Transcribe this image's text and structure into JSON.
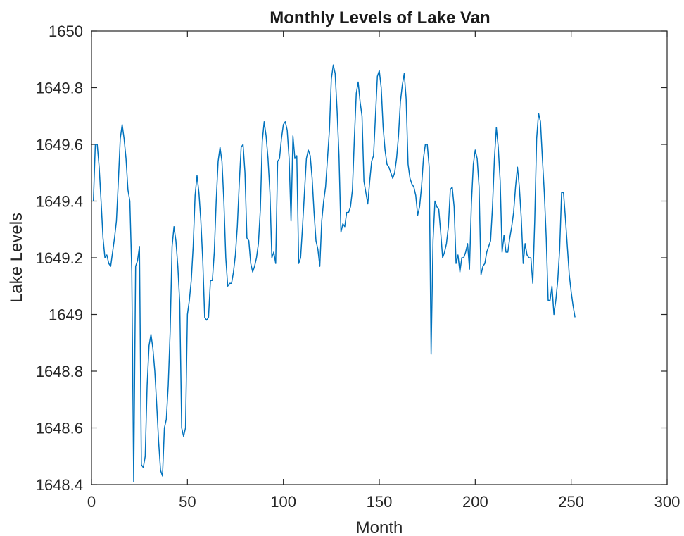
{
  "chart_data": {
    "type": "line",
    "title": "Monthly Levels of Lake Van",
    "xlabel": "Month",
    "ylabel": "Lake Levels",
    "xlim": [
      0,
      300
    ],
    "ylim": [
      1648.4,
      1650
    ],
    "x_ticks": [
      0,
      50,
      100,
      150,
      200,
      250,
      300
    ],
    "x_tick_labels": [
      "0",
      "50",
      "100",
      "150",
      "200",
      "250",
      "300"
    ],
    "y_ticks": [
      1648.4,
      1648.6,
      1648.8,
      1649,
      1649.2,
      1649.4,
      1649.6,
      1649.8,
      1650
    ],
    "y_tick_labels": [
      "1648.4",
      "1648.6",
      "1648.8",
      "1649",
      "1649.2",
      "1649.4",
      "1649.6",
      "1649.8",
      "1650"
    ],
    "grid": false,
    "line_color": "#0072BD",
    "series": [
      {
        "x": [
          1,
          2,
          3,
          4,
          5,
          6,
          7,
          8,
          9,
          10,
          11,
          12,
          13,
          14,
          15,
          16,
          17,
          18,
          19,
          20,
          21,
          22,
          23,
          24,
          25,
          26,
          27,
          28,
          29,
          30,
          31,
          32,
          33,
          34,
          35,
          36,
          37,
          38,
          39,
          40,
          41,
          42,
          43,
          44,
          45,
          46,
          47,
          48,
          49,
          50,
          51,
          52,
          53,
          54,
          55,
          56,
          57,
          58,
          59,
          60,
          61,
          62,
          63,
          64,
          65,
          66,
          67,
          68,
          69,
          70,
          71,
          72,
          73,
          74,
          75,
          76,
          77,
          78,
          79,
          80,
          81,
          82,
          83,
          84,
          85,
          86,
          87,
          88,
          89,
          90,
          91,
          92,
          93,
          94,
          95,
          96,
          97,
          98,
          99,
          100,
          101,
          102,
          103,
          104,
          105,
          106,
          107,
          108,
          109,
          110,
          111,
          112,
          113,
          114,
          115,
          116,
          117,
          118,
          119,
          120,
          121,
          122,
          123,
          124,
          125,
          126,
          127,
          128,
          129,
          130,
          131,
          132,
          133,
          134,
          135,
          136,
          137,
          138,
          139,
          140,
          141,
          142,
          143,
          144,
          145,
          146,
          147,
          148,
          149,
          150,
          151,
          152,
          153,
          154,
          155,
          156,
          157,
          158,
          159,
          160,
          161,
          162,
          163,
          164,
          165,
          166,
          167,
          168,
          169,
          170,
          171,
          172,
          173,
          174,
          175,
          176,
          177,
          178,
          179,
          180,
          181,
          182,
          183,
          184,
          185,
          186,
          187,
          188,
          189,
          190,
          191,
          192,
          193,
          194,
          195,
          196,
          197,
          198,
          199,
          200,
          201,
          202,
          203,
          204,
          205,
          206,
          207,
          208,
          209,
          210,
          211,
          212,
          213,
          214,
          215,
          216,
          217,
          218,
          219,
          220,
          221,
          222,
          223,
          224,
          225,
          226,
          227,
          228,
          229,
          230,
          231,
          232,
          233,
          234,
          235,
          236,
          237,
          238,
          239,
          240,
          241,
          242,
          243,
          244,
          245,
          246,
          247,
          248,
          249,
          250,
          251,
          252
        ],
        "values": [
          1649.4,
          1649.6,
          1649.6,
          1649.52,
          1649.4,
          1649.27,
          1649.2,
          1649.21,
          1649.18,
          1649.17,
          1649.22,
          1649.27,
          1649.33,
          1649.47,
          1649.62,
          1649.67,
          1649.62,
          1649.55,
          1649.44,
          1649.4,
          1649.15,
          1648.41,
          1649.17,
          1649.19,
          1649.24,
          1648.47,
          1648.46,
          1648.5,
          1648.75,
          1648.89,
          1648.93,
          1648.88,
          1648.8,
          1648.68,
          1648.55,
          1648.45,
          1648.43,
          1648.6,
          1648.63,
          1648.75,
          1648.94,
          1649.24,
          1649.31,
          1649.26,
          1649.17,
          1649.04,
          1648.6,
          1648.57,
          1648.6,
          1649.0,
          1649.05,
          1649.12,
          1649.24,
          1649.42,
          1649.49,
          1649.43,
          1649.33,
          1649.19,
          1648.99,
          1648.98,
          1648.99,
          1649.12,
          1649.12,
          1649.22,
          1649.4,
          1649.54,
          1649.59,
          1649.54,
          1649.4,
          1649.2,
          1649.1,
          1649.11,
          1649.11,
          1649.15,
          1649.21,
          1649.31,
          1649.46,
          1649.59,
          1649.6,
          1649.5,
          1649.27,
          1649.26,
          1649.18,
          1649.15,
          1649.17,
          1649.2,
          1649.25,
          1649.37,
          1649.61,
          1649.68,
          1649.63,
          1649.55,
          1649.43,
          1649.2,
          1649.22,
          1649.18,
          1649.54,
          1649.55,
          1649.62,
          1649.67,
          1649.68,
          1649.65,
          1649.55,
          1649.33,
          1649.63,
          1649.55,
          1649.56,
          1649.18,
          1649.2,
          1649.31,
          1649.43,
          1649.55,
          1649.58,
          1649.56,
          1649.48,
          1649.36,
          1649.26,
          1649.23,
          1649.17,
          1649.33,
          1649.4,
          1649.45,
          1649.55,
          1649.65,
          1649.83,
          1649.88,
          1649.85,
          1649.72,
          1649.56,
          1649.29,
          1649.32,
          1649.31,
          1649.36,
          1649.36,
          1649.38,
          1649.44,
          1649.62,
          1649.78,
          1649.82,
          1649.75,
          1649.7,
          1649.47,
          1649.43,
          1649.39,
          1649.47,
          1649.54,
          1649.56,
          1649.7,
          1649.84,
          1649.86,
          1649.8,
          1649.66,
          1649.58,
          1649.53,
          1649.52,
          1649.5,
          1649.48,
          1649.5,
          1649.55,
          1649.63,
          1649.75,
          1649.81,
          1649.85,
          1649.76,
          1649.53,
          1649.48,
          1649.46,
          1649.45,
          1649.42,
          1649.35,
          1649.38,
          1649.45,
          1649.55,
          1649.6,
          1649.6,
          1649.52,
          1648.86,
          1649.26,
          1649.4,
          1649.38,
          1649.37,
          1649.29,
          1649.2,
          1649.22,
          1649.25,
          1649.31,
          1649.44,
          1649.45,
          1649.38,
          1649.18,
          1649.21,
          1649.15,
          1649.2,
          1649.2,
          1649.22,
          1649.25,
          1649.16,
          1649.39,
          1649.53,
          1649.58,
          1649.55,
          1649.45,
          1649.14,
          1649.17,
          1649.18,
          1649.22,
          1649.24,
          1649.26,
          1649.38,
          1649.55,
          1649.66,
          1649.59,
          1649.47,
          1649.22,
          1649.28,
          1649.22,
          1649.22,
          1649.27,
          1649.31,
          1649.36,
          1649.45,
          1649.52,
          1649.45,
          1649.34,
          1649.18,
          1649.25,
          1649.21,
          1649.2,
          1649.2,
          1649.11,
          1649.33,
          1649.62,
          1649.71,
          1649.68,
          1649.55,
          1649.43,
          1649.27,
          1649.05,
          1649.05,
          1649.1,
          1649.0,
          1649.05,
          1649.12,
          1649.23,
          1649.43,
          1649.43,
          1649.34,
          1649.24,
          1649.14,
          1649.08,
          1649.03,
          1648.99
        ]
      }
    ]
  }
}
